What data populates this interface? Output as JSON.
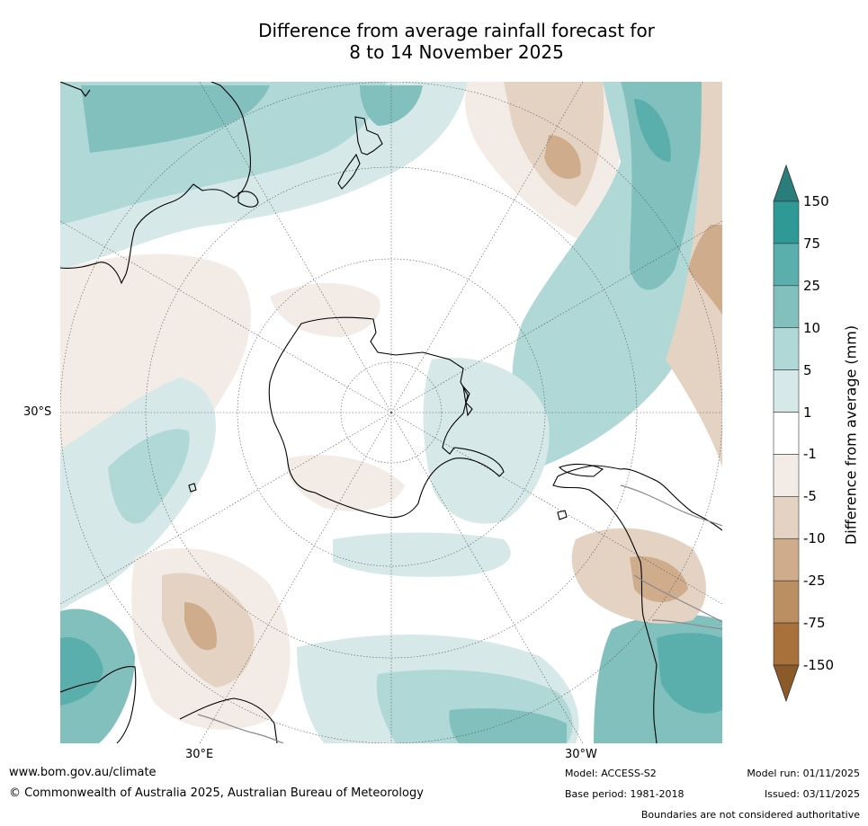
{
  "title": {
    "line1": "Difference from average rainfall forecast for",
    "line2": "8 to 14 November 2025"
  },
  "map": {
    "lat_label": "30°S",
    "lon_labels": {
      "east": "30°E",
      "west": "30°W"
    }
  },
  "colorbar": {
    "title": "Difference from average (mm)",
    "ticks": [
      "150",
      "75",
      "25",
      "10",
      "5",
      "1",
      "-1",
      "-5",
      "-10",
      "-25",
      "-75",
      "-150"
    ],
    "colors": [
      "#2a7d7b",
      "#2e9995",
      "#5aaeab",
      "#82c0be",
      "#b0d8d7",
      "#d6e9e8",
      "#ffffff",
      "#f3ece6",
      "#e4d3c2",
      "#cfac8c",
      "#bb8f62",
      "#a8713c",
      "#8c5a28"
    ]
  },
  "footer": {
    "url": "www.bom.gov.au/climate",
    "copyright": "© Commonwealth of Australia 2025, Australian Bureau of Meteorology",
    "model": "Model: ACCESS-S2",
    "base_period": "Base period: 1981-2018",
    "model_run": "Model run: 01/11/2025",
    "issued": "Issued: 03/11/2025",
    "disclaimer": "Boundaries are not considered authoritative"
  }
}
